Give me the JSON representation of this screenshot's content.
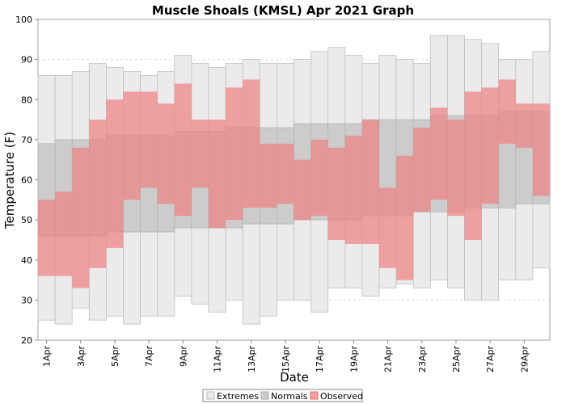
{
  "chart_data": {
    "type": "bar",
    "title": "Muscle Shoals (KMSL) Apr 2021 Graph",
    "xlabel": "Date",
    "ylabel": "Temperature (F)",
    "ylim": [
      20,
      100
    ],
    "yticks": [
      20,
      30,
      40,
      50,
      60,
      70,
      80,
      90,
      100
    ],
    "x_tick_labels": [
      "1Apr",
      "3Apr",
      "5Apr",
      "7Apr",
      "9Apr",
      "11Apr",
      "13Apr",
      "15Apr",
      "17Apr",
      "19Apr",
      "21Apr",
      "23Apr",
      "25Apr",
      "27Apr",
      "29Apr"
    ],
    "grid": true,
    "legend_position": "bottom",
    "legend": [
      "Extremes",
      "Normals",
      "Observed"
    ],
    "colors": {
      "extremes": "#ebebeb",
      "normals": "#cccccc",
      "observed": "#f08080"
    },
    "series": [
      {
        "name": "Extremes",
        "high": [
          86,
          86,
          87,
          89,
          88,
          87,
          86,
          87,
          91,
          89,
          88,
          89,
          90,
          89,
          89,
          90,
          92,
          93,
          91,
          89,
          91,
          90,
          89,
          96,
          96,
          95,
          94,
          90,
          90,
          92
        ],
        "low": [
          25,
          24,
          28,
          25,
          26,
          24,
          26,
          26,
          31,
          29,
          27,
          30,
          24,
          26,
          30,
          30,
          27,
          33,
          33,
          31,
          33,
          34,
          33,
          35,
          33,
          30,
          30,
          35,
          35,
          38
        ]
      },
      {
        "name": "Normals",
        "high": [
          69,
          70,
          70,
          70,
          71,
          71,
          71,
          71,
          72,
          72,
          72,
          73,
          73,
          73,
          73,
          74,
          74,
          74,
          74,
          75,
          75,
          75,
          75,
          76,
          76,
          76,
          76,
          77,
          77,
          77
        ],
        "low": [
          46,
          46,
          46,
          46,
          47,
          47,
          47,
          47,
          48,
          48,
          48,
          48,
          49,
          49,
          49,
          50,
          50,
          50,
          50,
          51,
          51,
          51,
          52,
          52,
          52,
          53,
          53,
          53,
          54,
          54
        ]
      },
      {
        "name": "Observed",
        "high": [
          55,
          57,
          68,
          75,
          80,
          82,
          82,
          79,
          84,
          75,
          75,
          83,
          85,
          69,
          69,
          65,
          70,
          68,
          71,
          75,
          58,
          66,
          73,
          78,
          75,
          82,
          83,
          85,
          79,
          79
        ],
        "low": [
          36,
          36,
          33,
          38,
          43,
          55,
          58,
          54,
          51,
          58,
          48,
          50,
          53,
          53,
          54,
          50,
          51,
          45,
          44,
          44,
          38,
          35,
          52,
          55,
          51,
          45,
          54,
          69,
          68,
          56
        ]
      }
    ]
  }
}
